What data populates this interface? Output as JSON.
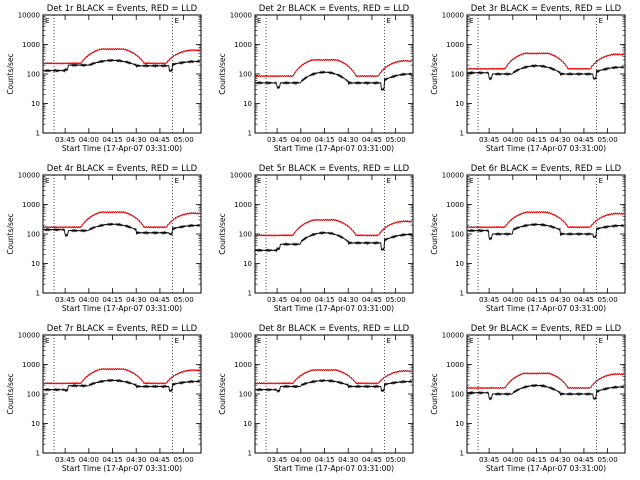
{
  "figure": {
    "ylabel": "Counts/sec",
    "xlabel": "Start Time (17-Apr-07 03:31:00)",
    "time_start_min": 0,
    "time_end_min": 39,
    "y_log": true,
    "ylim": [
      1,
      10000
    ],
    "ytick_values": [
      1,
      10,
      100,
      1000,
      10000
    ],
    "ytick_labels": [
      "1",
      "10",
      "100",
      "1000",
      "10000"
    ],
    "xtick_minutes": [
      14,
      29,
      44,
      59,
      74,
      89
    ],
    "xtick_labels": [
      "03:45",
      "04:00",
      "04:15",
      "04:30",
      "04:45",
      "05:00"
    ],
    "xlim_minutes": [
      0,
      100
    ],
    "marker_lines_minutes": [
      7,
      82
    ],
    "marker_label": "E",
    "colors": {
      "events": "#000000",
      "lld": "#e00000"
    }
  },
  "chart_data": [
    {
      "type": "line",
      "title": "Det 1r BLACK = Events, RED = LLD",
      "series": [
        {
          "name": "BLACK = Events",
          "base": 200,
          "amp": 90,
          "dips": [
            [
              0,
              130
            ],
            [
              14,
              200
            ],
            [
              44,
              190
            ],
            [
              80,
              130
            ]
          ]
        },
        {
          "name": "RED = LLD",
          "base": 230,
          "amp": 550,
          "peak_max": 700
        }
      ]
    },
    {
      "type": "line",
      "title": "Det 2r BLACK = Events, RED = LLD",
      "series": [
        {
          "name": "BLACK = Events",
          "base": 55,
          "amp": 60,
          "dips": [
            [
              0,
              50
            ],
            [
              14,
              50
            ],
            [
              44,
              50
            ],
            [
              80,
              30
            ]
          ]
        },
        {
          "name": "RED = LLD",
          "base": 85,
          "amp": 260,
          "peak_max": 300
        }
      ]
    },
    {
      "type": "line",
      "title": "Det 3r BLACK = Events, RED = LLD",
      "series": [
        {
          "name": "BLACK = Events",
          "base": 110,
          "amp": 80,
          "dips": [
            [
              0,
              110
            ],
            [
              14,
              100
            ],
            [
              44,
              100
            ],
            [
              80,
              70
            ]
          ]
        },
        {
          "name": "RED = LLD",
          "base": 150,
          "amp": 420,
          "peak_max": 500
        }
      ]
    },
    {
      "type": "line",
      "title": "Det 4r BLACK = Events, RED = LLD",
      "series": [
        {
          "name": "BLACK = Events",
          "base": 140,
          "amp": 75,
          "dips": [
            [
              0,
              140
            ],
            [
              14,
              130
            ],
            [
              44,
              110
            ],
            [
              80,
              100
            ]
          ]
        },
        {
          "name": "RED = LLD",
          "base": 170,
          "amp": 450,
          "peak_max": 550
        }
      ]
    },
    {
      "type": "line",
      "title": "Det 5r BLACK = Events, RED = LLD",
      "series": [
        {
          "name": "BLACK = Events",
          "base": 55,
          "amp": 55,
          "dips": [
            [
              0,
              28
            ],
            [
              14,
              45
            ],
            [
              44,
              50
            ],
            [
              80,
              30
            ]
          ]
        },
        {
          "name": "RED = LLD",
          "base": 90,
          "amp": 240,
          "peak_max": 300
        }
      ]
    },
    {
      "type": "line",
      "title": "Det 6r BLACK = Events, RED = LLD",
      "series": [
        {
          "name": "BLACK = Events",
          "base": 140,
          "amp": 70,
          "dips": [
            [
              0,
              130
            ],
            [
              14,
              100
            ],
            [
              44,
              100
            ],
            [
              80,
              80
            ]
          ]
        },
        {
          "name": "RED = LLD",
          "base": 170,
          "amp": 430,
          "peak_max": 550
        }
      ]
    },
    {
      "type": "line",
      "title": "Det 7r BLACK = Events, RED = LLD",
      "series": [
        {
          "name": "BLACK = Events",
          "base": 200,
          "amp": 90,
          "dips": [
            [
              0,
              140
            ],
            [
              14,
              190
            ],
            [
              44,
              180
            ],
            [
              80,
              130
            ]
          ]
        },
        {
          "name": "RED = LLD",
          "base": 230,
          "amp": 550,
          "peak_max": 700
        }
      ]
    },
    {
      "type": "line",
      "title": "Det 8r BLACK = Events, RED = LLD",
      "series": [
        {
          "name": "BLACK = Events",
          "base": 200,
          "amp": 85,
          "dips": [
            [
              0,
              140
            ],
            [
              14,
              180
            ],
            [
              44,
              180
            ],
            [
              80,
              130
            ]
          ]
        },
        {
          "name": "RED = LLD",
          "base": 230,
          "amp": 500,
          "peak_max": 650
        }
      ]
    },
    {
      "type": "line",
      "title": "Det 9r BLACK = Events, RED = LLD",
      "series": [
        {
          "name": "BLACK = Events",
          "base": 110,
          "amp": 85,
          "dips": [
            [
              0,
              110
            ],
            [
              14,
              100
            ],
            [
              44,
              100
            ],
            [
              80,
              70
            ]
          ]
        },
        {
          "name": "RED = LLD",
          "base": 160,
          "amp": 420,
          "peak_max": 500
        }
      ]
    }
  ]
}
